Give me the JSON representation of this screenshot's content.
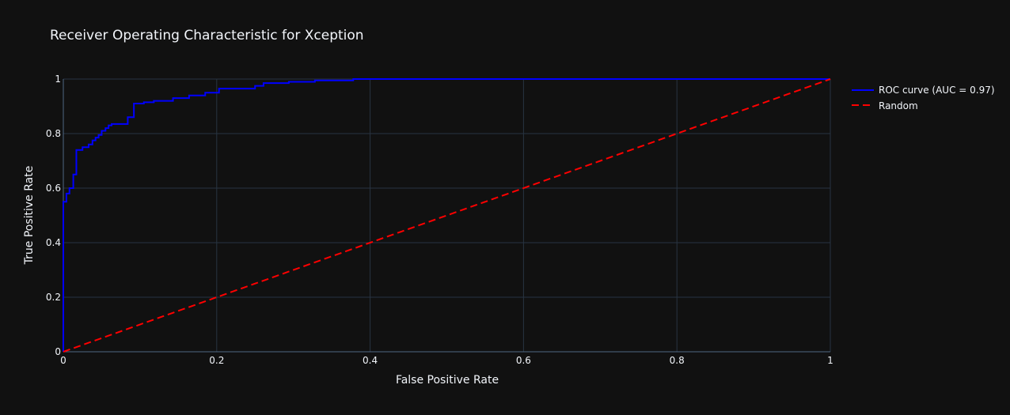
{
  "chart_data": {
    "type": "line",
    "title": "Receiver Operating Characteristic for Xception",
    "xlabel": "False Positive Rate",
    "ylabel": "True Positive Rate",
    "xlim": [
      0,
      1
    ],
    "ylim": [
      0,
      1
    ],
    "x_ticks": [
      0,
      0.2,
      0.4,
      0.6,
      0.8,
      1
    ],
    "y_ticks": [
      0,
      0.2,
      0.4,
      0.6,
      0.8,
      1
    ],
    "x_tick_labels": [
      "0",
      "0.2",
      "0.4",
      "0.6",
      "0.8",
      "1"
    ],
    "y_tick_labels": [
      "0",
      "0.2",
      "0.4",
      "0.6",
      "0.8",
      "1"
    ],
    "grid": true,
    "legend_position": "right",
    "background_color": "#111111",
    "series": [
      {
        "name": "ROC curve (AUC = 0.97)",
        "color": "#0000ff",
        "dash": "solid",
        "step": "hv",
        "x": [
          0,
          0,
          0.004,
          0.004,
          0.008,
          0.008,
          0.013,
          0.013,
          0.017,
          0.017,
          0.025,
          0.033,
          0.038,
          0.042,
          0.046,
          0.05,
          0.055,
          0.059,
          0.063,
          0.084,
          0.084,
          0.092,
          0.092,
          0.105,
          0.118,
          0.143,
          0.164,
          0.185,
          0.203,
          0.25,
          0.261,
          0.294,
          0.328,
          0.378,
          1
        ],
        "y": [
          0,
          0.55,
          0.55,
          0.58,
          0.58,
          0.6,
          0.6,
          0.65,
          0.65,
          0.74,
          0.75,
          0.76,
          0.775,
          0.785,
          0.795,
          0.81,
          0.82,
          0.83,
          0.835,
          0.835,
          0.86,
          0.86,
          0.91,
          0.915,
          0.92,
          0.93,
          0.94,
          0.95,
          0.965,
          0.975,
          0.985,
          0.99,
          0.995,
          1,
          1
        ]
      },
      {
        "name": "Random",
        "color": "#ff0000",
        "dash": "dash",
        "x": [
          0,
          1
        ],
        "y": [
          0,
          1
        ]
      }
    ]
  }
}
